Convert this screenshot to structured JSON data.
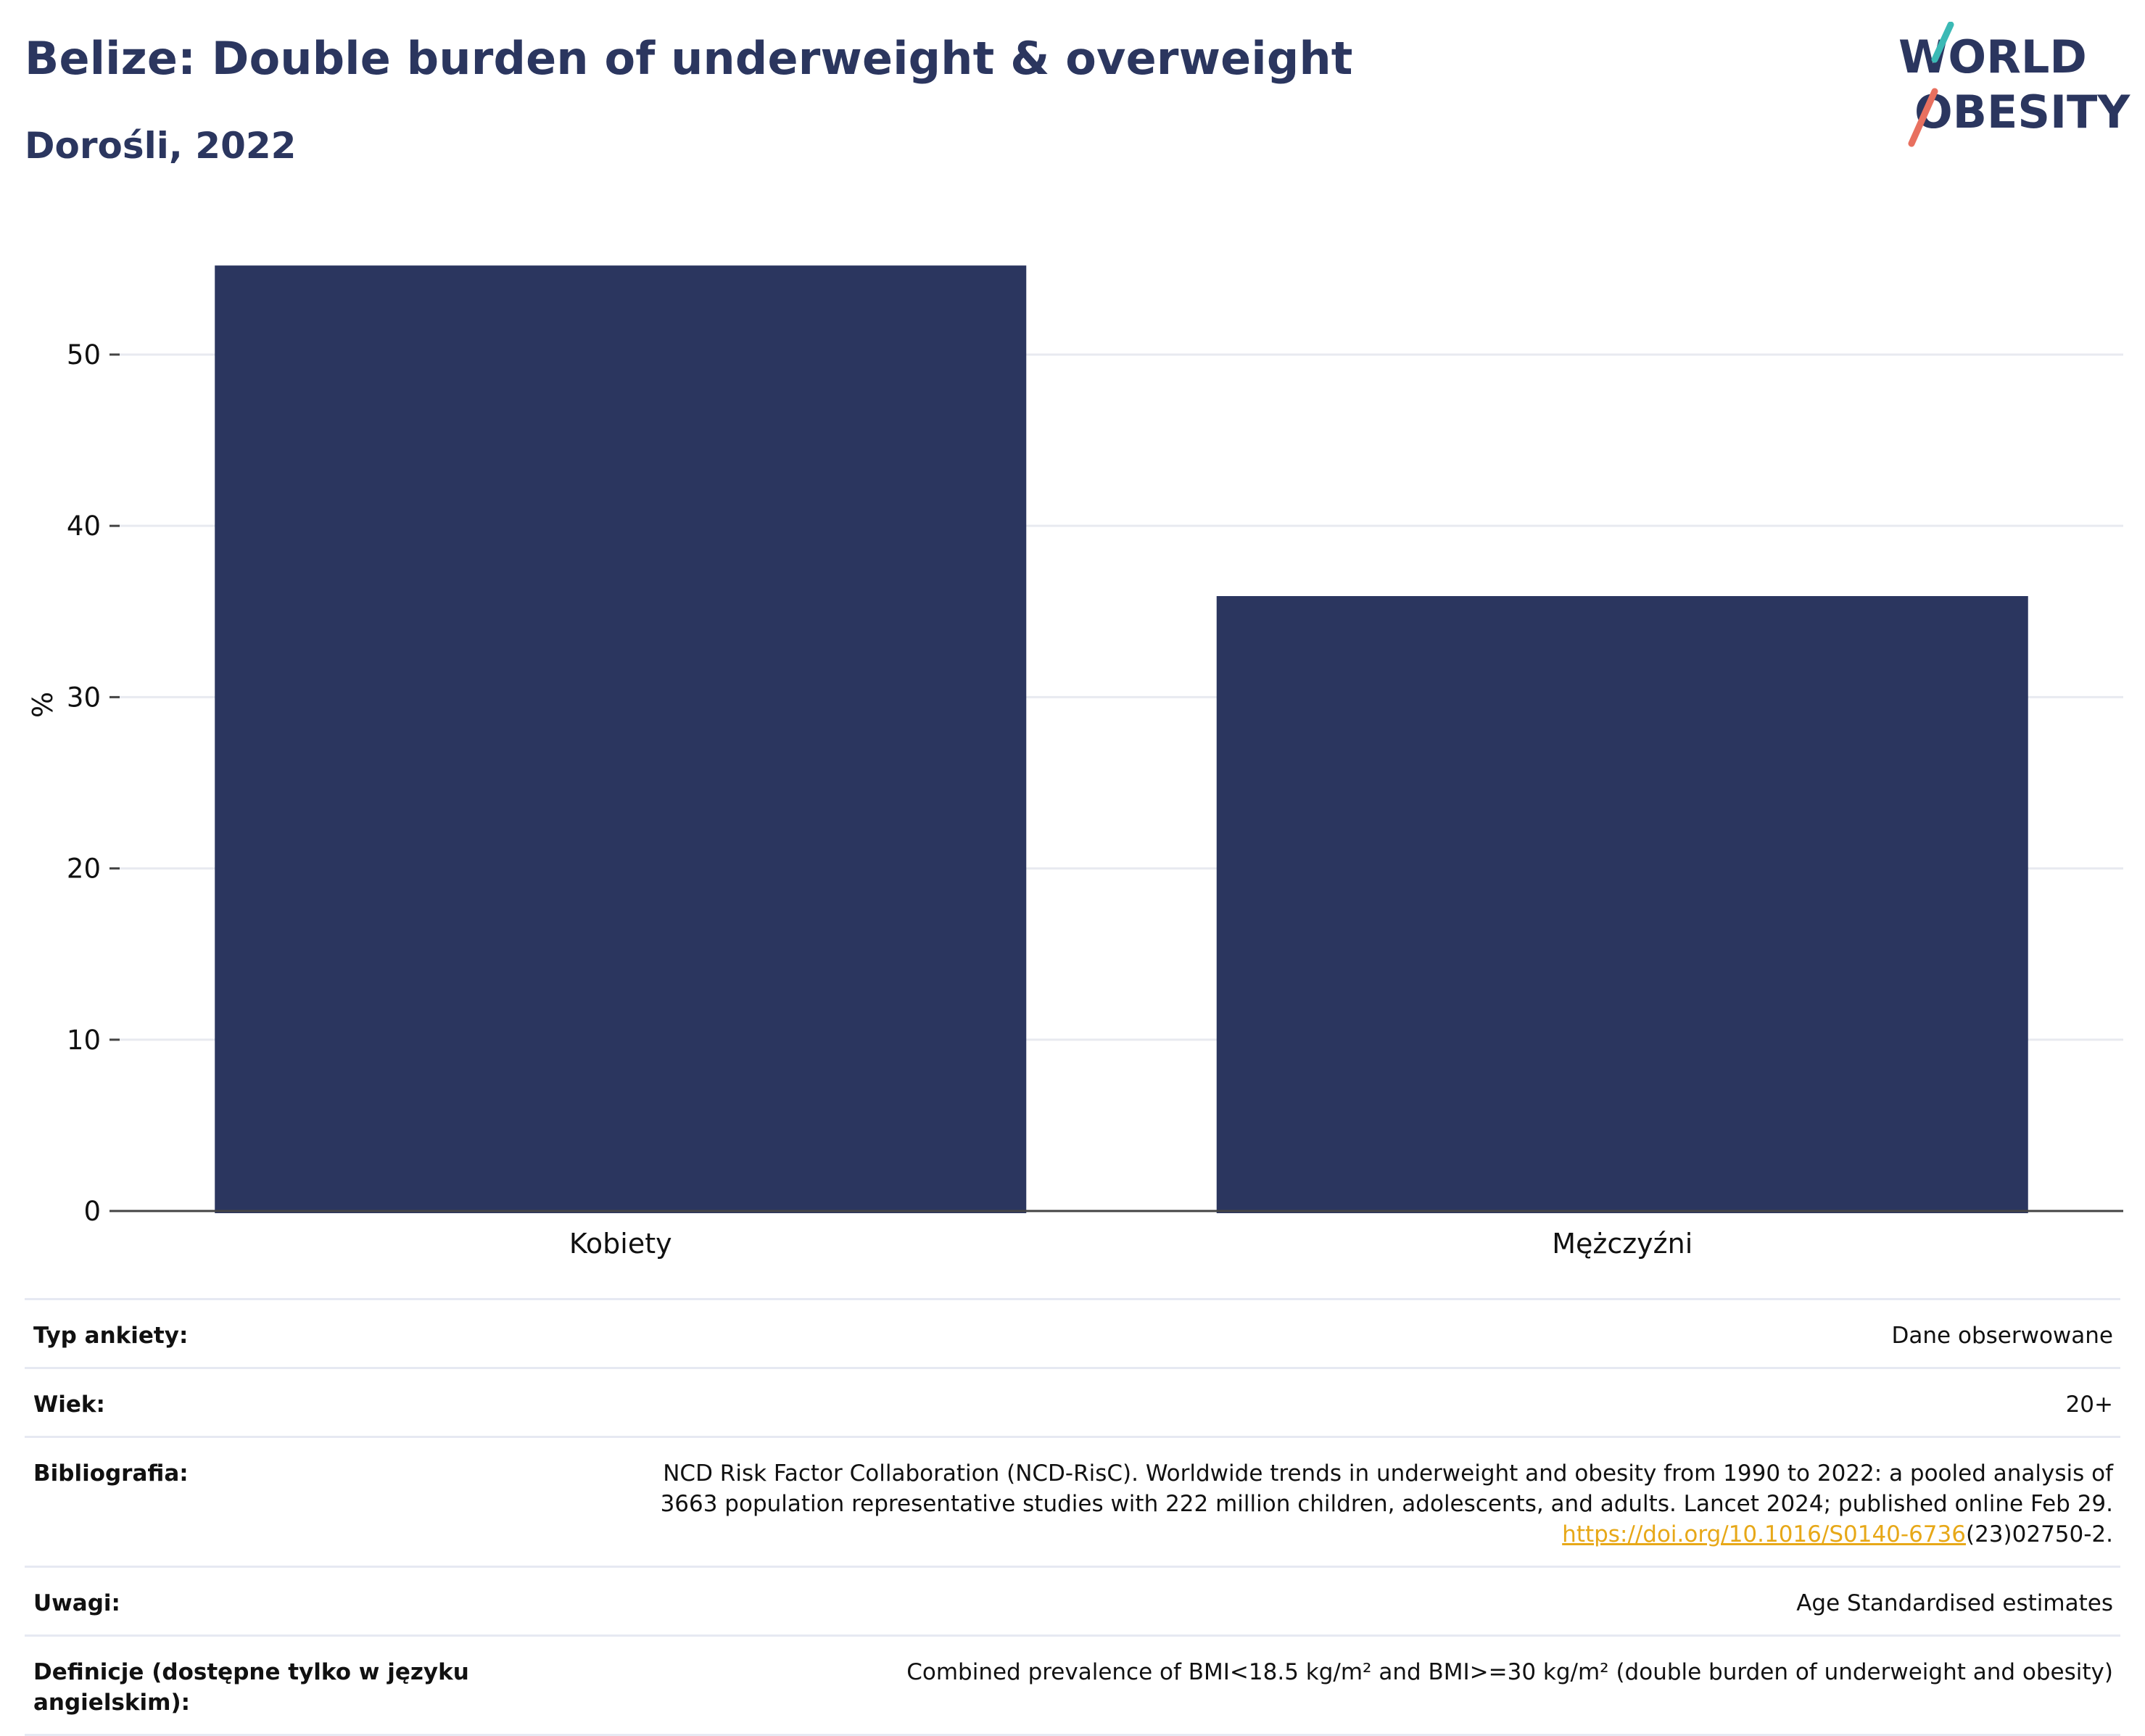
{
  "header": {
    "title": "Belize: Double burden of underweight & overweight",
    "subtitle": "Dorośli, 2022"
  },
  "logo": {
    "line1": "WORLD",
    "line2": "OBESITY"
  },
  "chart_data": {
    "type": "bar",
    "categories": [
      "Kobiety",
      "Mężczyźni"
    ],
    "values": [
      55.2,
      35.9
    ],
    "ylabel": "%",
    "xlabel": "",
    "ylim": [
      0,
      58
    ],
    "yticks": [
      0,
      10,
      20,
      30,
      40,
      50
    ],
    "grid": true,
    "bar_color": "#2b365f"
  },
  "meta": {
    "survey_type": {
      "label": "Typ ankiety:",
      "value": "Dane obserwowane"
    },
    "age": {
      "label": "Wiek:",
      "value": "20+"
    },
    "bibliography": {
      "label": "Bibliografia:",
      "line1": "NCD Risk Factor Collaboration (NCD-RisC). Worldwide trends in underweight and obesity from 1990 to 2022: a pooled analysis of",
      "line2": "3663 population representative studies with 222 million children, adolescents, and adults. Lancet 2024; published online Feb 29.",
      "link": "https://doi.org/10.1016/S0140-6736",
      "link_suffix": "(23)02750-2."
    },
    "notes": {
      "label": "Uwagi:",
      "value": "Age Standardised estimates"
    },
    "definitions": {
      "label": "Definicje (dostępne tylko w języku angielskim):",
      "value": "Combined prevalence of BMI<18.5 kg/m² and BMI>=30 kg/m² (double burden of underweight and obesity)"
    }
  }
}
